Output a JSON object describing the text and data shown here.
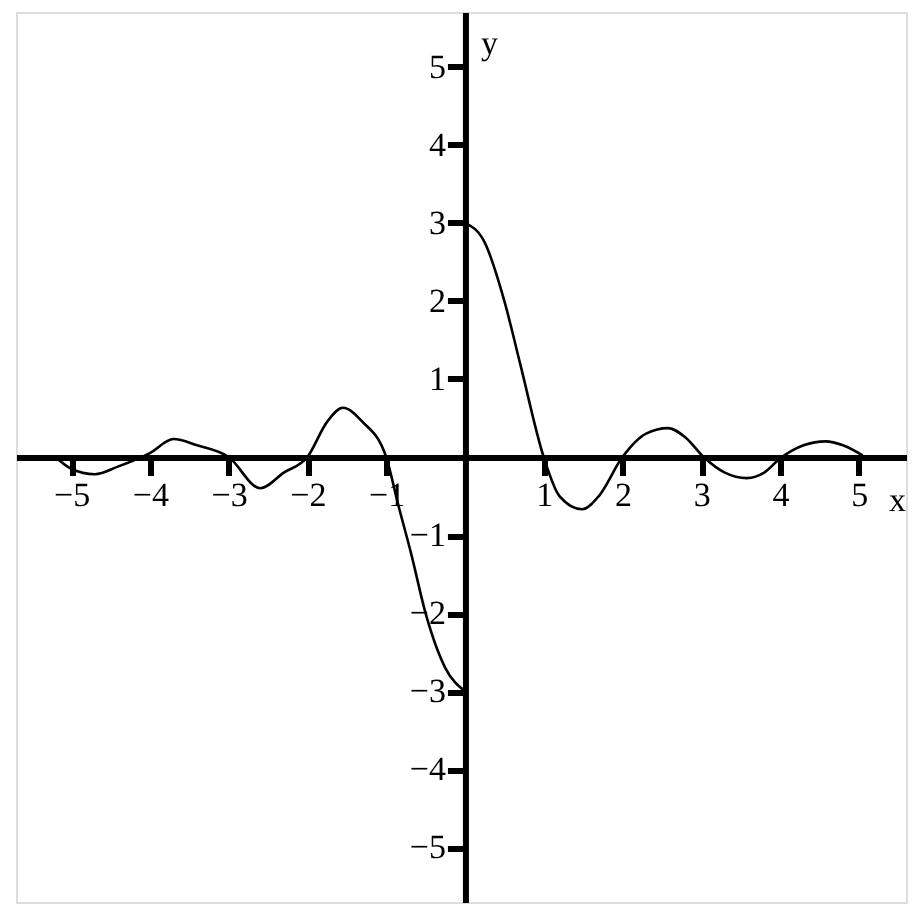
{
  "chart_data": {
    "type": "line",
    "xlabel": "x",
    "ylabel": "y",
    "series": [
      {
        "color": "#000000",
        "x": [
          -5.2,
          -5.0,
          -4.7,
          -4.4,
          -4.0,
          -3.7,
          -3.4,
          -3.0,
          -2.6,
          -2.3,
          -2.0,
          -1.75,
          -1.55,
          -1.3,
          -1.0,
          -0.85,
          -0.68,
          -0.5,
          -0.25,
          0
        ],
        "values": [
          0,
          -0.15,
          -0.22,
          -0.12,
          0.05,
          0.23,
          0.15,
          0,
          -0.4,
          -0.2,
          0,
          0.45,
          0.63,
          0.45,
          0,
          -0.6,
          -1.25,
          -2.0,
          -2.7,
          -3.0
        ]
      },
      {
        "color": "#000000",
        "x": [
          0,
          0.25,
          0.5,
          0.7,
          1.0,
          1.2,
          1.49,
          1.7,
          2.0,
          2.3,
          2.58,
          2.8,
          3.03,
          3.3,
          3.58,
          3.8,
          4.0,
          4.3,
          4.58,
          4.8,
          5.05
        ],
        "values": [
          3.0,
          2.75,
          2.0,
          1.2,
          0,
          -0.5,
          -0.67,
          -0.5,
          0,
          0.3,
          0.37,
          0.25,
          0,
          -0.2,
          -0.27,
          -0.2,
          -0.02,
          0.15,
          0.2,
          0.15,
          0.02
        ]
      }
    ],
    "xlim": [
      -5.7,
      5.6
    ],
    "ylim": [
      -5.7,
      5.7
    ],
    "xticks": [
      -5,
      -4,
      -3,
      -2,
      -1,
      1,
      2,
      3,
      4,
      5
    ],
    "yticks": [
      -5,
      -4,
      -3,
      -2,
      -1,
      1,
      2,
      3,
      4,
      5
    ],
    "grid": false
  }
}
